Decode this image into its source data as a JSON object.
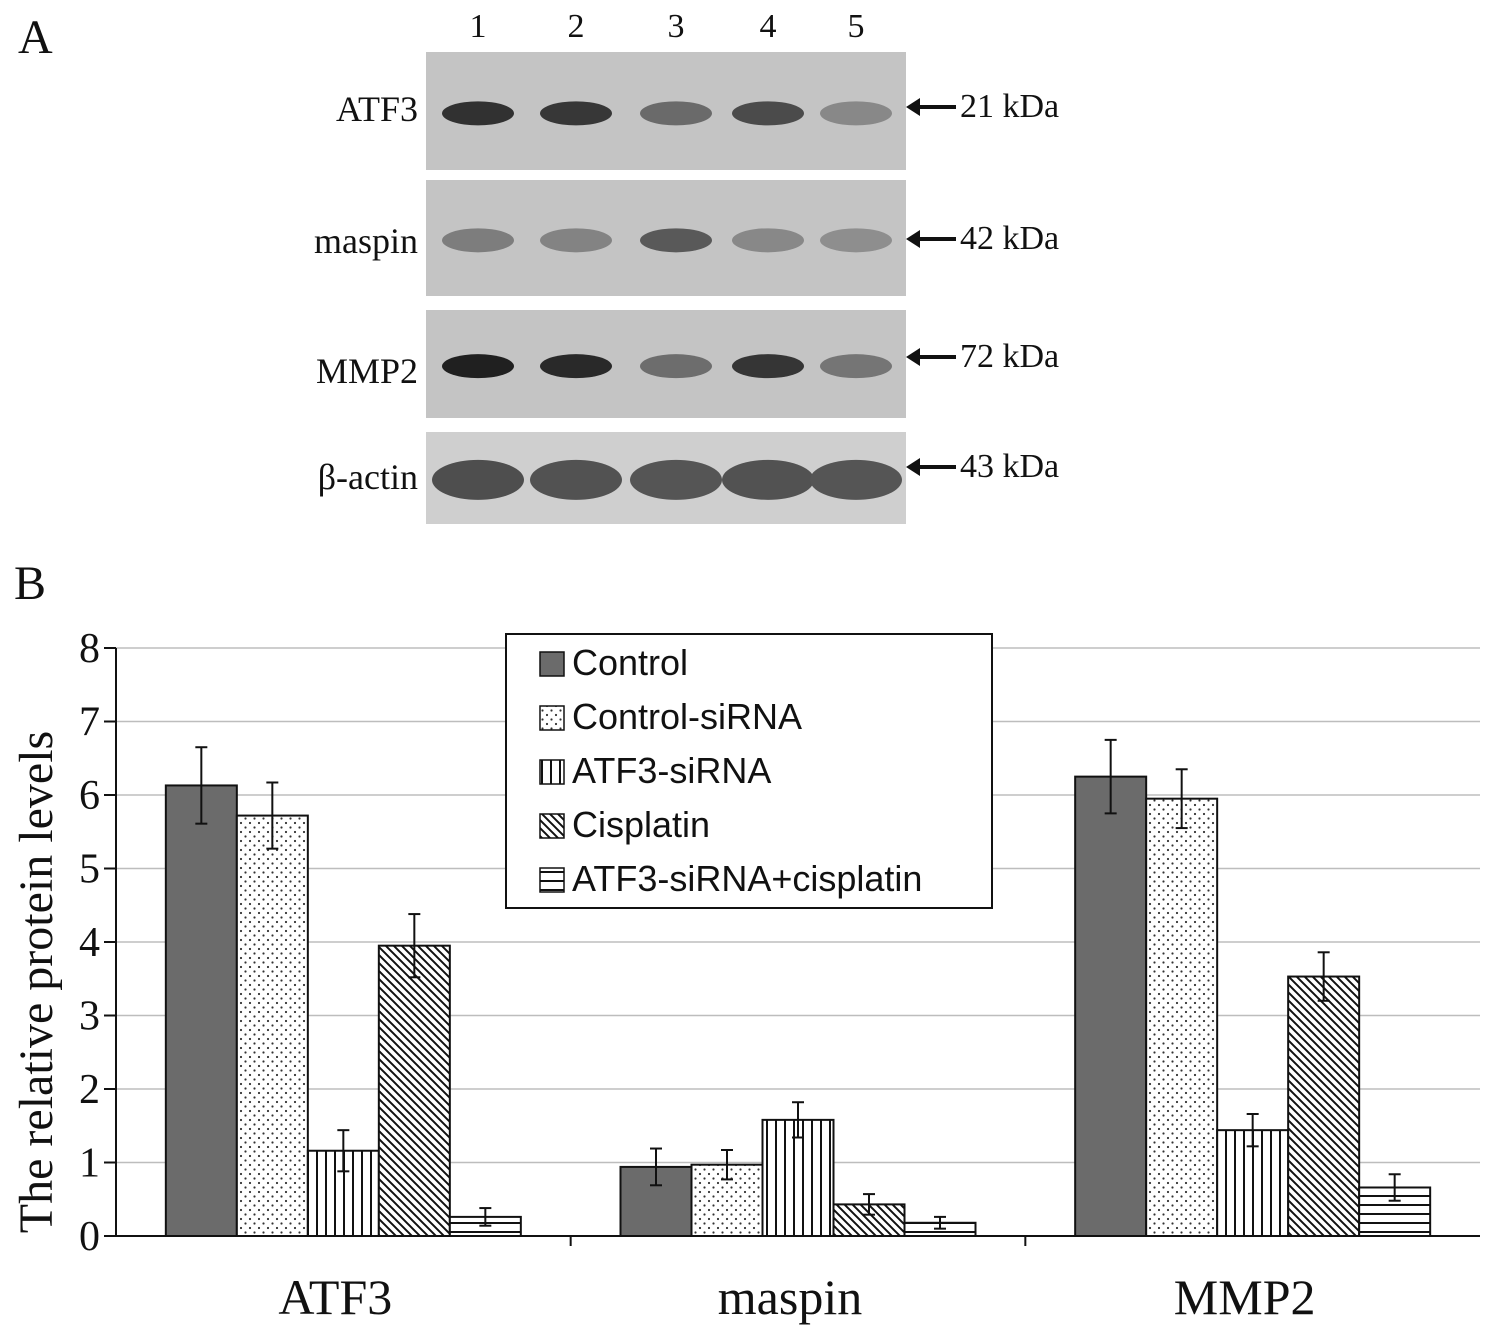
{
  "panel_a": {
    "letter": "A",
    "lanes": [
      "1",
      "2",
      "3",
      "4",
      "5"
    ],
    "blots": [
      {
        "protein": "ATF3",
        "size": "21 kDa",
        "bands": [
          0.92,
          0.88,
          0.55,
          0.75,
          0.35
        ],
        "dark": 0.9
      },
      {
        "protein": "maspin",
        "size": "42 kDa",
        "bands": [
          0.55,
          0.5,
          0.85,
          0.45,
          0.4
        ],
        "dark": 0.7
      },
      {
        "protein": "MMP2",
        "size": "72 kDa",
        "bands": [
          0.98,
          0.92,
          0.5,
          0.85,
          0.45
        ],
        "dark": 0.95
      },
      {
        "protein": "β-actin",
        "size": "43 kDa",
        "bands": [
          0.88,
          0.85,
          0.82,
          0.85,
          0.82
        ],
        "dark": 0.75
      }
    ]
  },
  "panel_b": {
    "letter": "B"
  },
  "chart_data": {
    "type": "bar",
    "title": "",
    "xlabel": "",
    "ylabel": "The relative protein levels",
    "categories": [
      "ATF3",
      "maspin",
      "MMP2"
    ],
    "ylim": [
      0,
      8
    ],
    "yticks": [
      "0",
      "1",
      "2",
      "3",
      "4",
      "5",
      "6",
      "7",
      "8"
    ],
    "grid": true,
    "legend_position": "top-center",
    "series": [
      {
        "name": "Control",
        "values": [
          6.13,
          0.94,
          6.25
        ],
        "errors": [
          0.52,
          0.25,
          0.5
        ],
        "pattern": "solid"
      },
      {
        "name": "Control-siRNA",
        "values": [
          5.72,
          0.97,
          5.95
        ],
        "errors": [
          0.45,
          0.2,
          0.4
        ],
        "pattern": "dots"
      },
      {
        "name": "ATF3-siRNA",
        "values": [
          1.16,
          1.58,
          1.44
        ],
        "errors": [
          0.28,
          0.24,
          0.22
        ],
        "pattern": "vlines"
      },
      {
        "name": "Cisplatin",
        "values": [
          3.95,
          0.43,
          3.53
        ],
        "errors": [
          0.43,
          0.14,
          0.33
        ],
        "pattern": "diag"
      },
      {
        "name": "ATF3-siRNA+cisplatin",
        "values": [
          0.26,
          0.18,
          0.66
        ],
        "errors": [
          0.12,
          0.08,
          0.18
        ],
        "pattern": "hlines"
      }
    ]
  }
}
